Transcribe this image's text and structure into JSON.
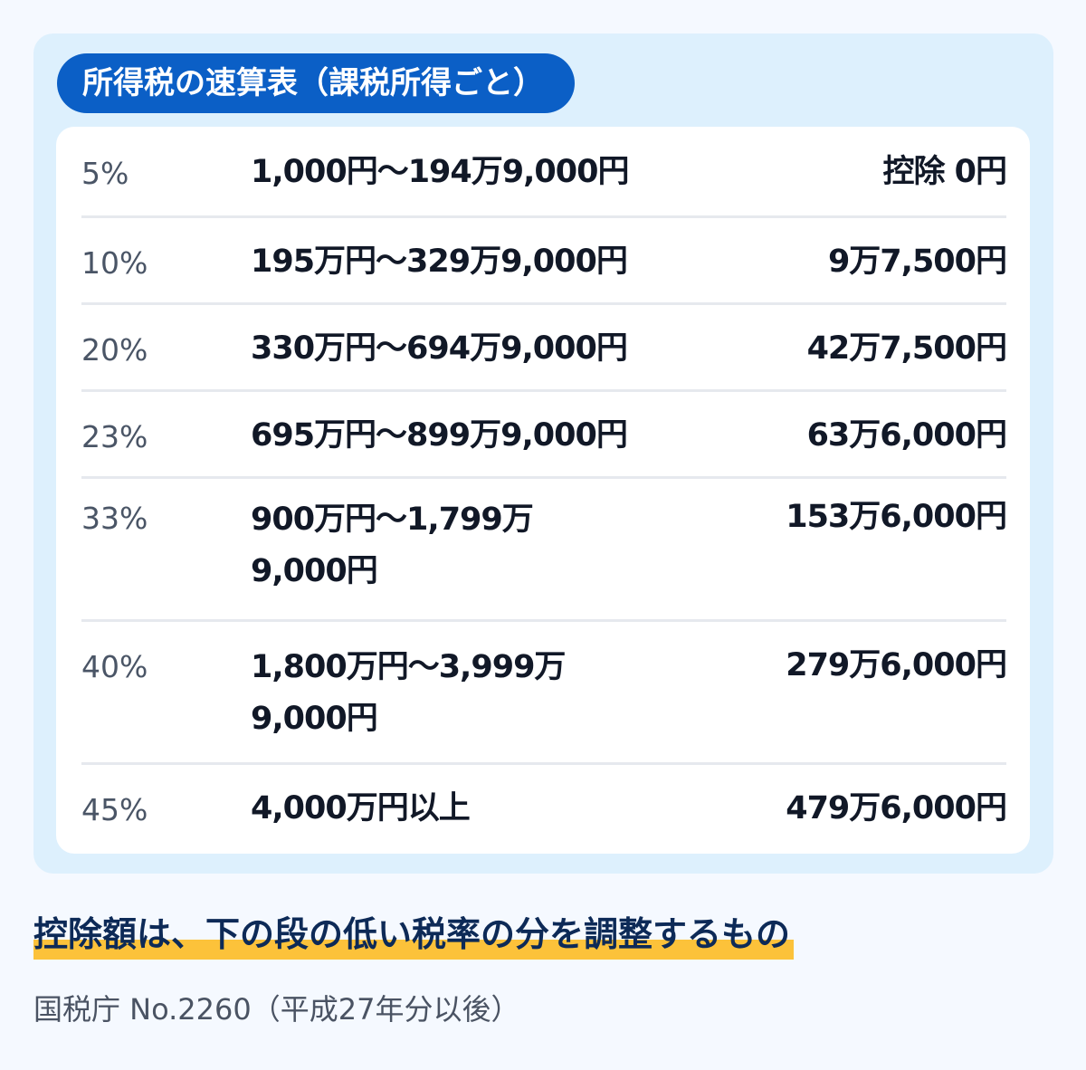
{
  "title": "所得税の速算表（課税所得ごと）",
  "rows": [
    {
      "rate": "5%",
      "range": "1,000円〜194万9,000円",
      "deduction": "控除 0円"
    },
    {
      "rate": "10%",
      "range": "195万円〜329万9,000円",
      "deduction": "9万7,500円"
    },
    {
      "rate": "20%",
      "range": "330万円〜694万9,000円",
      "deduction": "42万7,500円"
    },
    {
      "rate": "23%",
      "range": "695万円〜899万9,000円",
      "deduction": "63万6,000円"
    },
    {
      "rate": "33%",
      "range": "900万円〜1,799万9,000円",
      "deduction": "153万6,000円"
    },
    {
      "rate": "40%",
      "range": "1,800万円〜3,999万9,000円",
      "deduction": "279万6,000円"
    },
    {
      "rate": "45%",
      "range": "4,000万円以上",
      "deduction": "479万6,000円"
    }
  ],
  "note": "控除額は、下の段の低い税率の分を調整するもの",
  "source": "国税庁 No.2260（平成27年分以後）",
  "colors": {
    "panel_background": "#ddf0fd",
    "title_pill": "#0b5fc6",
    "highlight": "#fcc23a",
    "note_text": "#0d2a57"
  }
}
